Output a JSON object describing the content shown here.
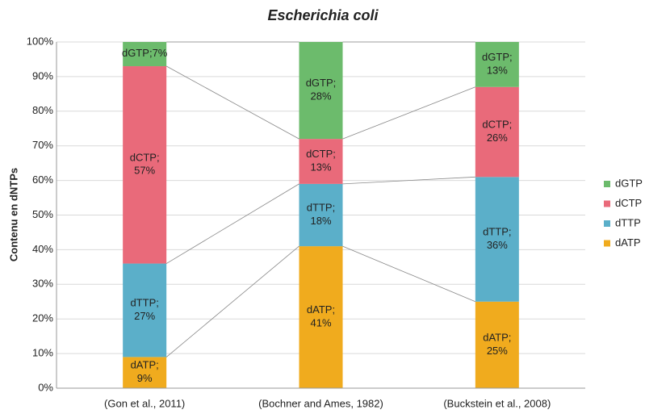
{
  "chart_data": {
    "type": "stacked_bar",
    "title": "Escherichia coli",
    "y_label": "Contenu en dNTPs",
    "categories": [
      "(Gon et al., 2011)",
      "(Bochner and Ames, 1982)",
      "(Buckstein et al., 2008)"
    ],
    "series": [
      {
        "name": "dATP",
        "color": "#f0ab1e",
        "values": [
          9,
          41,
          25
        ],
        "value_labels": [
          "9%",
          "41%",
          "25%"
        ]
      },
      {
        "name": "dTTP",
        "color": "#5bafc9",
        "values": [
          27,
          18,
          36
        ],
        "value_labels": [
          "27%",
          "18%",
          "36%"
        ]
      },
      {
        "name": "dCTP",
        "color": "#e96a7a",
        "values": [
          57,
          13,
          26
        ],
        "value_labels": [
          "57%",
          "13%",
          "26%"
        ]
      },
      {
        "name": "dGTP",
        "color": "#6cbb6c",
        "values": [
          7,
          28,
          13
        ],
        "value_labels": [
          "7%",
          "28%",
          "13%"
        ]
      }
    ],
    "ylim": [
      0,
      100
    ],
    "yticks": [
      {
        "value": 0,
        "label": "0%"
      },
      {
        "value": 10,
        "label": "10%"
      },
      {
        "value": 20,
        "label": "20%"
      },
      {
        "value": 30,
        "label": "30%"
      },
      {
        "value": 40,
        "label": "40%"
      },
      {
        "value": 50,
        "label": "50%"
      },
      {
        "value": 60,
        "label": "60%"
      },
      {
        "value": 70,
        "label": "70%"
      },
      {
        "value": 80,
        "label": "80%"
      },
      {
        "value": 90,
        "label": "90%"
      },
      {
        "value": 100,
        "label": "100%"
      }
    ],
    "grid": true,
    "legend": "right"
  }
}
